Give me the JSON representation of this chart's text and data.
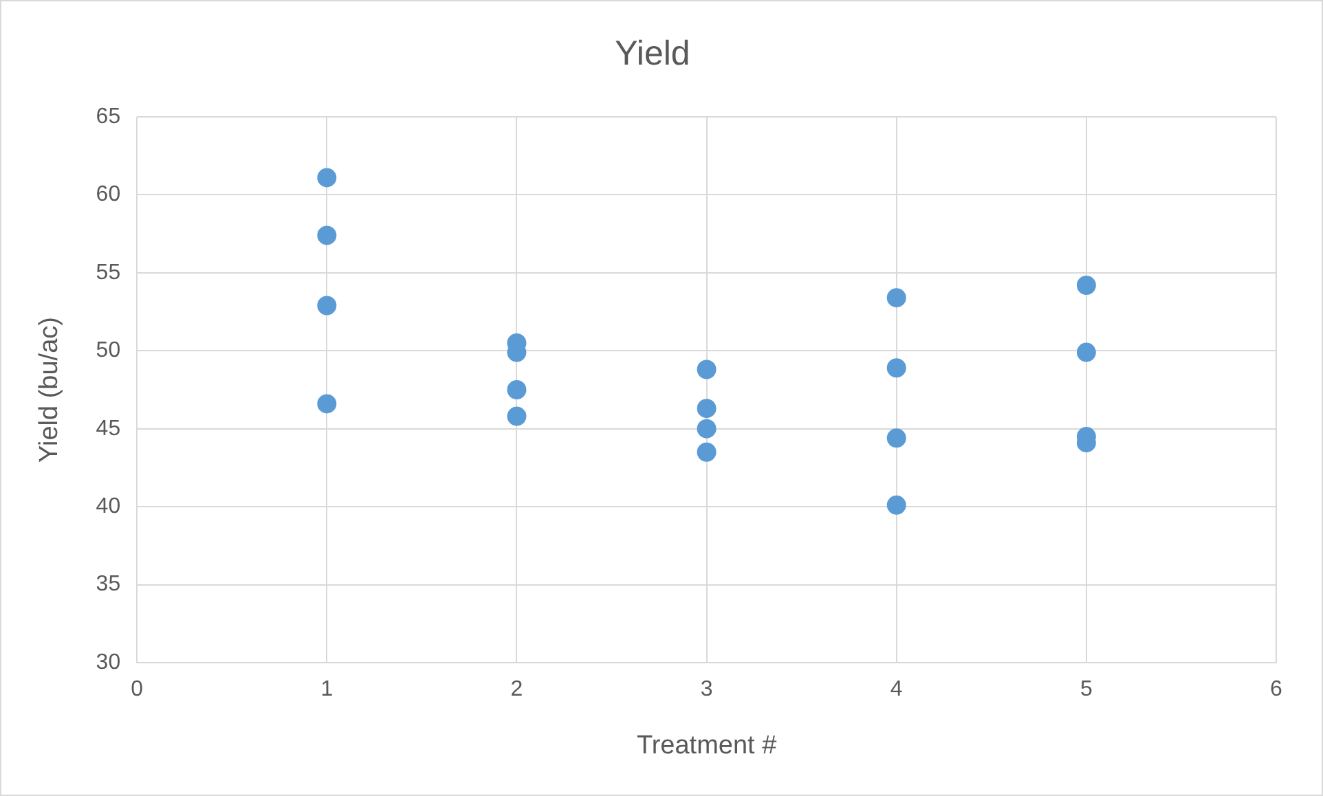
{
  "chart_data": {
    "type": "scatter",
    "title": "Yield",
    "xlabel": "Treatment #",
    "ylabel": "Yield (bu/ac)",
    "series": [
      {
        "color": "#5b9bd5",
        "x": [
          1,
          1,
          1,
          1,
          2,
          2,
          2,
          2,
          3,
          3,
          3,
          3,
          4,
          4,
          4,
          4,
          5,
          5,
          5,
          5
        ],
        "values": [
          61.1,
          57.4,
          52.9,
          46.6,
          50.5,
          49.9,
          47.5,
          45.8,
          48.8,
          46.3,
          45.0,
          43.5,
          53.4,
          48.9,
          44.4,
          40.1,
          54.2,
          49.9,
          44.5,
          44.1
        ]
      }
    ],
    "xlim": [
      0,
      6
    ],
    "xticks": [
      0,
      1,
      2,
      3,
      4,
      5,
      6
    ],
    "ylim": [
      30,
      65
    ],
    "yticks": [
      30,
      35,
      40,
      45,
      50,
      55,
      60,
      65
    ],
    "grid": true,
    "legend": false,
    "marker": "circle"
  }
}
